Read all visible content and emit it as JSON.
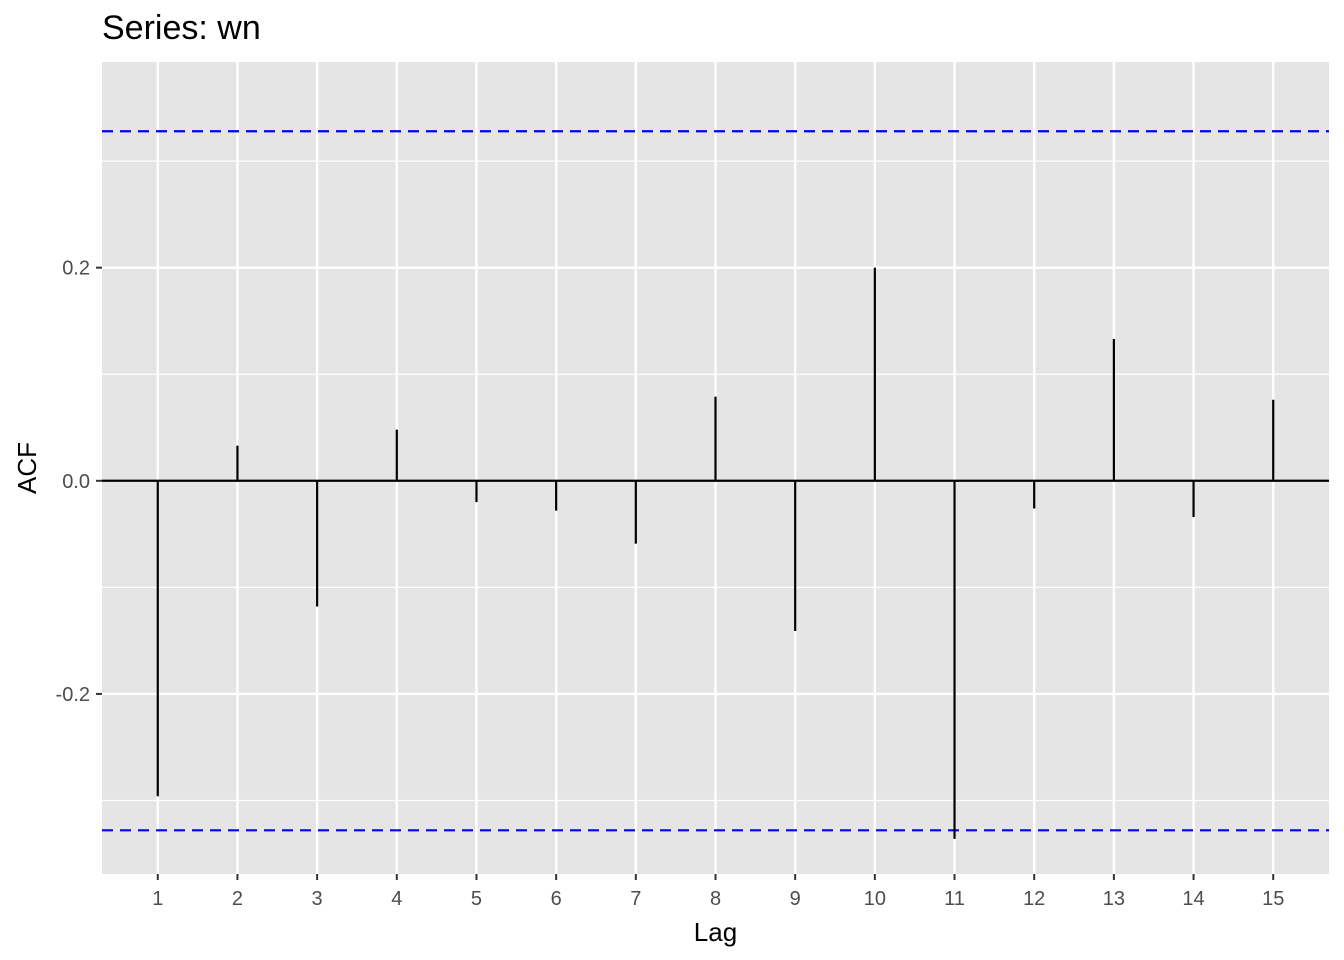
{
  "chart_data": {
    "type": "bar",
    "title": "Series: wn",
    "xlabel": "Lag",
    "ylabel": "ACF",
    "x": [
      1,
      2,
      3,
      4,
      5,
      6,
      7,
      8,
      9,
      10,
      11,
      12,
      13,
      14,
      15
    ],
    "values": [
      -0.296,
      0.033,
      -0.118,
      0.048,
      -0.02,
      -0.028,
      -0.059,
      0.079,
      -0.141,
      0.2,
      -0.336,
      -0.026,
      0.133,
      -0.034,
      0.076
    ],
    "confidence_bounds": [
      0.328,
      -0.328
    ],
    "xlim": [
      0.3,
      15.7
    ],
    "ylim": [
      -0.369,
      0.393
    ],
    "x_ticks": [
      "1",
      "2",
      "3",
      "4",
      "5",
      "6",
      "7",
      "8",
      "9",
      "10",
      "11",
      "12",
      "13",
      "14",
      "15"
    ],
    "y_ticks": [
      "-0.2",
      "0.0",
      "0.2"
    ],
    "y_tick_values": [
      -0.2,
      0.0,
      0.2
    ],
    "grid": true,
    "colors": {
      "panel": "#e5e5e5",
      "grid": "#ffffff",
      "bars": "#000000",
      "bounds": "#0000ff"
    }
  }
}
